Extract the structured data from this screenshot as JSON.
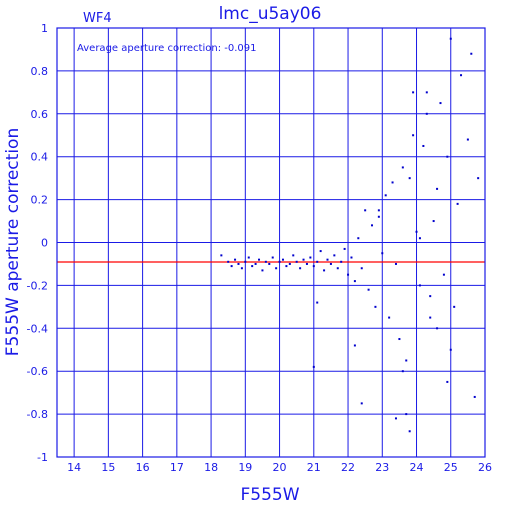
{
  "colors": {
    "axis": "#1a1ae6",
    "points": "#0000cc",
    "reference_line": "#ff0000",
    "background": "#ffffff"
  },
  "chart_data": {
    "type": "scatter",
    "title": "lmc_u5ay06",
    "chip_label": "WF4",
    "annotation": "Average aperture correction: -0.091",
    "xlabel": "F555W",
    "ylabel": "F555W aperture correction",
    "xlim": [
      13.5,
      26
    ],
    "ylim": [
      -1,
      1
    ],
    "grid": true,
    "x_ticks": [
      14,
      15,
      16,
      17,
      18,
      19,
      20,
      21,
      22,
      23,
      24,
      25,
      26
    ],
    "y_ticks": [
      -1,
      -0.8,
      -0.6,
      -0.4,
      -0.2,
      0,
      0.2,
      0.4,
      0.6,
      0.8,
      1
    ],
    "x_tick_labels": [
      "14",
      "15",
      "16",
      "17",
      "18",
      "19",
      "20",
      "21",
      "22",
      "23",
      "24",
      "25",
      "26"
    ],
    "y_tick_labels": [
      "-1",
      "-0.8",
      "-0.6",
      "-0.4",
      "-0.2",
      "0",
      "0.2",
      "0.4",
      "0.6",
      "0.8",
      "1"
    ],
    "reference_line_y": -0.091,
    "series": [
      {
        "x": [
          18.3,
          18.5,
          18.6,
          18.7,
          18.8,
          18.9,
          19.0,
          19.1,
          19.2,
          19.3,
          19.4,
          19.5,
          19.6,
          19.7,
          19.8,
          19.9,
          20.0,
          20.1,
          20.2,
          20.3,
          20.4,
          20.5,
          20.6,
          20.7,
          20.8,
          20.9,
          21.0,
          21.1,
          21.2,
          21.3,
          21.4,
          21.5,
          21.6,
          21.7,
          21.8,
          21.9,
          22.0,
          22.1,
          22.2,
          22.3,
          22.4,
          22.5,
          22.6,
          22.7,
          22.8,
          22.9,
          23.0,
          23.1,
          23.2,
          23.3,
          23.4,
          23.5,
          23.6,
          23.7,
          23.8,
          23.9,
          24.0,
          24.1,
          24.2,
          24.3,
          24.4,
          24.5,
          24.6,
          24.7,
          24.8,
          24.9,
          25.0,
          25.1,
          25.2,
          25.3,
          25.5,
          25.7,
          25.8,
          24.6,
          23.9,
          23.6,
          21.0,
          21.1,
          22.2,
          22.4,
          23.7,
          24.1,
          24.4,
          25.0,
          25.6,
          24.9,
          23.4,
          23.8,
          22.9,
          24.3
        ],
        "y": [
          -0.06,
          -0.09,
          -0.11,
          -0.08,
          -0.1,
          -0.12,
          -0.09,
          -0.07,
          -0.11,
          -0.1,
          -0.08,
          -0.13,
          -0.09,
          -0.1,
          -0.07,
          -0.12,
          -0.09,
          -0.08,
          -0.11,
          -0.1,
          -0.06,
          -0.09,
          -0.12,
          -0.08,
          -0.1,
          -0.07,
          -0.11,
          -0.09,
          -0.04,
          -0.13,
          -0.08,
          -0.1,
          -0.06,
          -0.12,
          -0.09,
          -0.03,
          -0.15,
          -0.07,
          -0.18,
          0.02,
          -0.12,
          0.15,
          -0.22,
          0.08,
          -0.3,
          0.12,
          -0.05,
          0.22,
          -0.35,
          0.28,
          -0.1,
          -0.45,
          0.35,
          -0.55,
          0.3,
          0.5,
          0.05,
          -0.2,
          0.45,
          0.6,
          -0.35,
          0.1,
          0.25,
          0.65,
          -0.15,
          0.4,
          0.95,
          -0.3,
          0.18,
          0.78,
          0.48,
          -0.72,
          0.3,
          -0.4,
          0.7,
          -0.6,
          -0.58,
          -0.28,
          -0.48,
          -0.75,
          -0.8,
          0.02,
          -0.25,
          -0.5,
          0.88,
          -0.65,
          -0.82,
          -0.88,
          0.15,
          0.7
        ]
      }
    ]
  }
}
